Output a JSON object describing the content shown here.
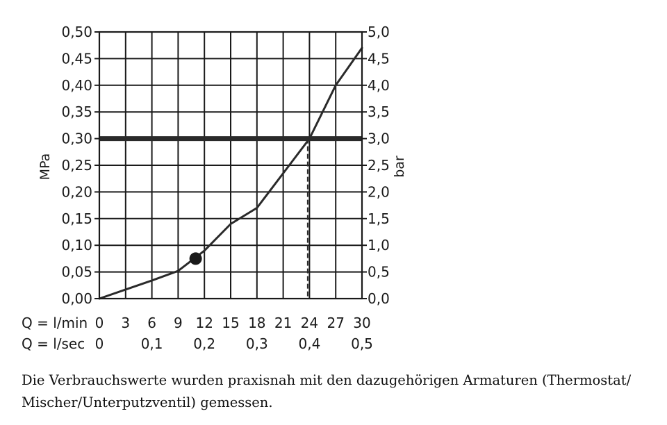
{
  "chart_data": {
    "type": "line",
    "left_axis": {
      "label": "MPa",
      "ticks": [
        "0,00",
        "0,05",
        "0,10",
        "0,15",
        "0,20",
        "0,25",
        "0,30",
        "0,35",
        "0,40",
        "0,45",
        "0,50"
      ],
      "ylim": [
        0,
        0.5
      ]
    },
    "right_axis": {
      "label": "bar",
      "ticks": [
        "0,0",
        "0,5",
        "1,0",
        "1,5",
        "2,0",
        "2,5",
        "3,0",
        "3,5",
        "4,0",
        "4,5",
        "5,0"
      ],
      "ylim": [
        0,
        5
      ]
    },
    "x_axis_lmin": {
      "label": "Q = l/min",
      "ticks": [
        "0",
        "3",
        "6",
        "9",
        "12",
        "15",
        "18",
        "21",
        "24",
        "27",
        "30"
      ],
      "xlim": [
        0,
        30
      ]
    },
    "x_axis_lsec": {
      "label": "Q = l/sec",
      "ticks": [
        "0",
        "0,1",
        "0,2",
        "0,3",
        "0,4",
        "0,5"
      ],
      "values": [
        0,
        0.1,
        0.2,
        0.3,
        0.4,
        0.5
      ]
    },
    "series": [
      {
        "x": [
          0,
          3,
          6,
          9,
          12,
          15,
          18,
          21,
          24,
          27,
          30
        ],
        "y": [
          0,
          0.017,
          0.034,
          0.052,
          0.09,
          0.14,
          0.17,
          0.235,
          0.3,
          0.4,
          0.47
        ]
      }
    ],
    "marker_point": {
      "x": 11,
      "y": 0.075
    },
    "reference_line": {
      "y": 0.3
    },
    "reference_x": 23.8,
    "grid": true
  },
  "caption": "Die Verbrauchswerte wurden praxisnah mit den dazugehörigen Armaturen (Thermostat/ Mischer/Unterputzventil) gemessen."
}
